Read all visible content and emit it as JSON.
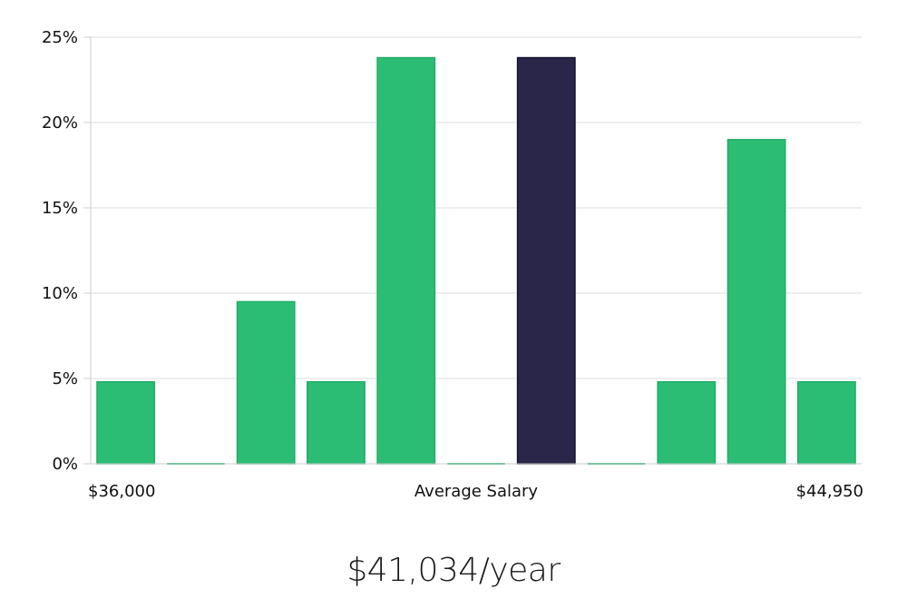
{
  "chart_data": {
    "type": "bar",
    "title": "",
    "xlabel": "Average Salary",
    "ylabel": "",
    "ylim": [
      0,
      25
    ],
    "y_ticks": [
      0,
      5,
      10,
      15,
      20,
      25
    ],
    "y_tick_suffix": "%",
    "x_min_label": "$36,000",
    "x_max_label": "$44,950",
    "grid": true,
    "values": [
      4.8,
      0,
      9.5,
      4.8,
      23.8,
      0,
      23.8,
      0,
      4.8,
      19.0,
      4.8
    ],
    "highlight_index": 6,
    "colors": {
      "bar": "#2bbd74",
      "highlight": "#29264a",
      "grid": "#dddddd",
      "axis": "#cccccc"
    }
  },
  "salary_text": "$41,034/year"
}
